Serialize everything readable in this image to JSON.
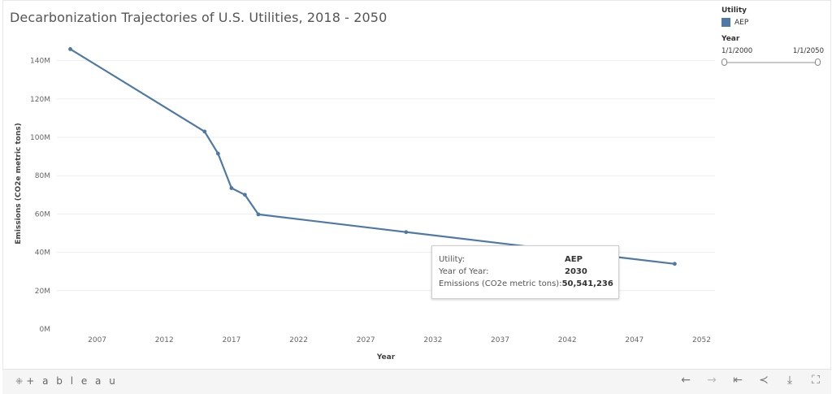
{
  "title": "Decarbonization Trajectories of  U.S. Utilities, 2018 - 2050",
  "legend": {
    "utility_header": "Utility",
    "utility_item": "AEP",
    "year_header": "Year",
    "slider_min": "1/1/2000",
    "slider_max": "1/1/2050"
  },
  "tooltip": {
    "rows": [
      {
        "key": "Utility:",
        "value": "AEP"
      },
      {
        "key": "Year of Year:",
        "value": "2030"
      },
      {
        "key": "Emissions (CO2e metric tons):",
        "value": "50,541,236"
      }
    ]
  },
  "toolbar": {
    "brand": "+ a b l e a u",
    "icons": [
      "undo-icon",
      "redo-icon",
      "revert-icon",
      "share-icon",
      "download-icon",
      "fullscreen-icon"
    ]
  },
  "colors": {
    "line": "#4e79a7",
    "grid": "#eeeeee"
  },
  "chart_data": {
    "type": "line",
    "title": "Decarbonization Trajectories of  U.S. Utilities, 2018 - 2050",
    "xlabel": "Year",
    "ylabel": "Emissions (CO2e metric tons)",
    "xlim": [
      2004,
      2053
    ],
    "ylim": [
      0,
      150000000
    ],
    "x_ticks": [
      2007,
      2012,
      2017,
      2022,
      2027,
      2032,
      2037,
      2042,
      2047,
      2052
    ],
    "y_ticks": [
      0,
      20000000,
      40000000,
      60000000,
      80000000,
      100000000,
      120000000,
      140000000
    ],
    "y_tick_labels": [
      "0M",
      "20M",
      "40M",
      "60M",
      "80M",
      "100M",
      "120M",
      "140M"
    ],
    "grid": true,
    "series": [
      {
        "name": "AEP",
        "x": [
          2005,
          2015,
          2016,
          2017,
          2018,
          2019,
          2030,
          2050
        ],
        "values": [
          146000000,
          103000000,
          91500000,
          73500000,
          70000000,
          59800000,
          50541236,
          34000000
        ]
      }
    ]
  }
}
